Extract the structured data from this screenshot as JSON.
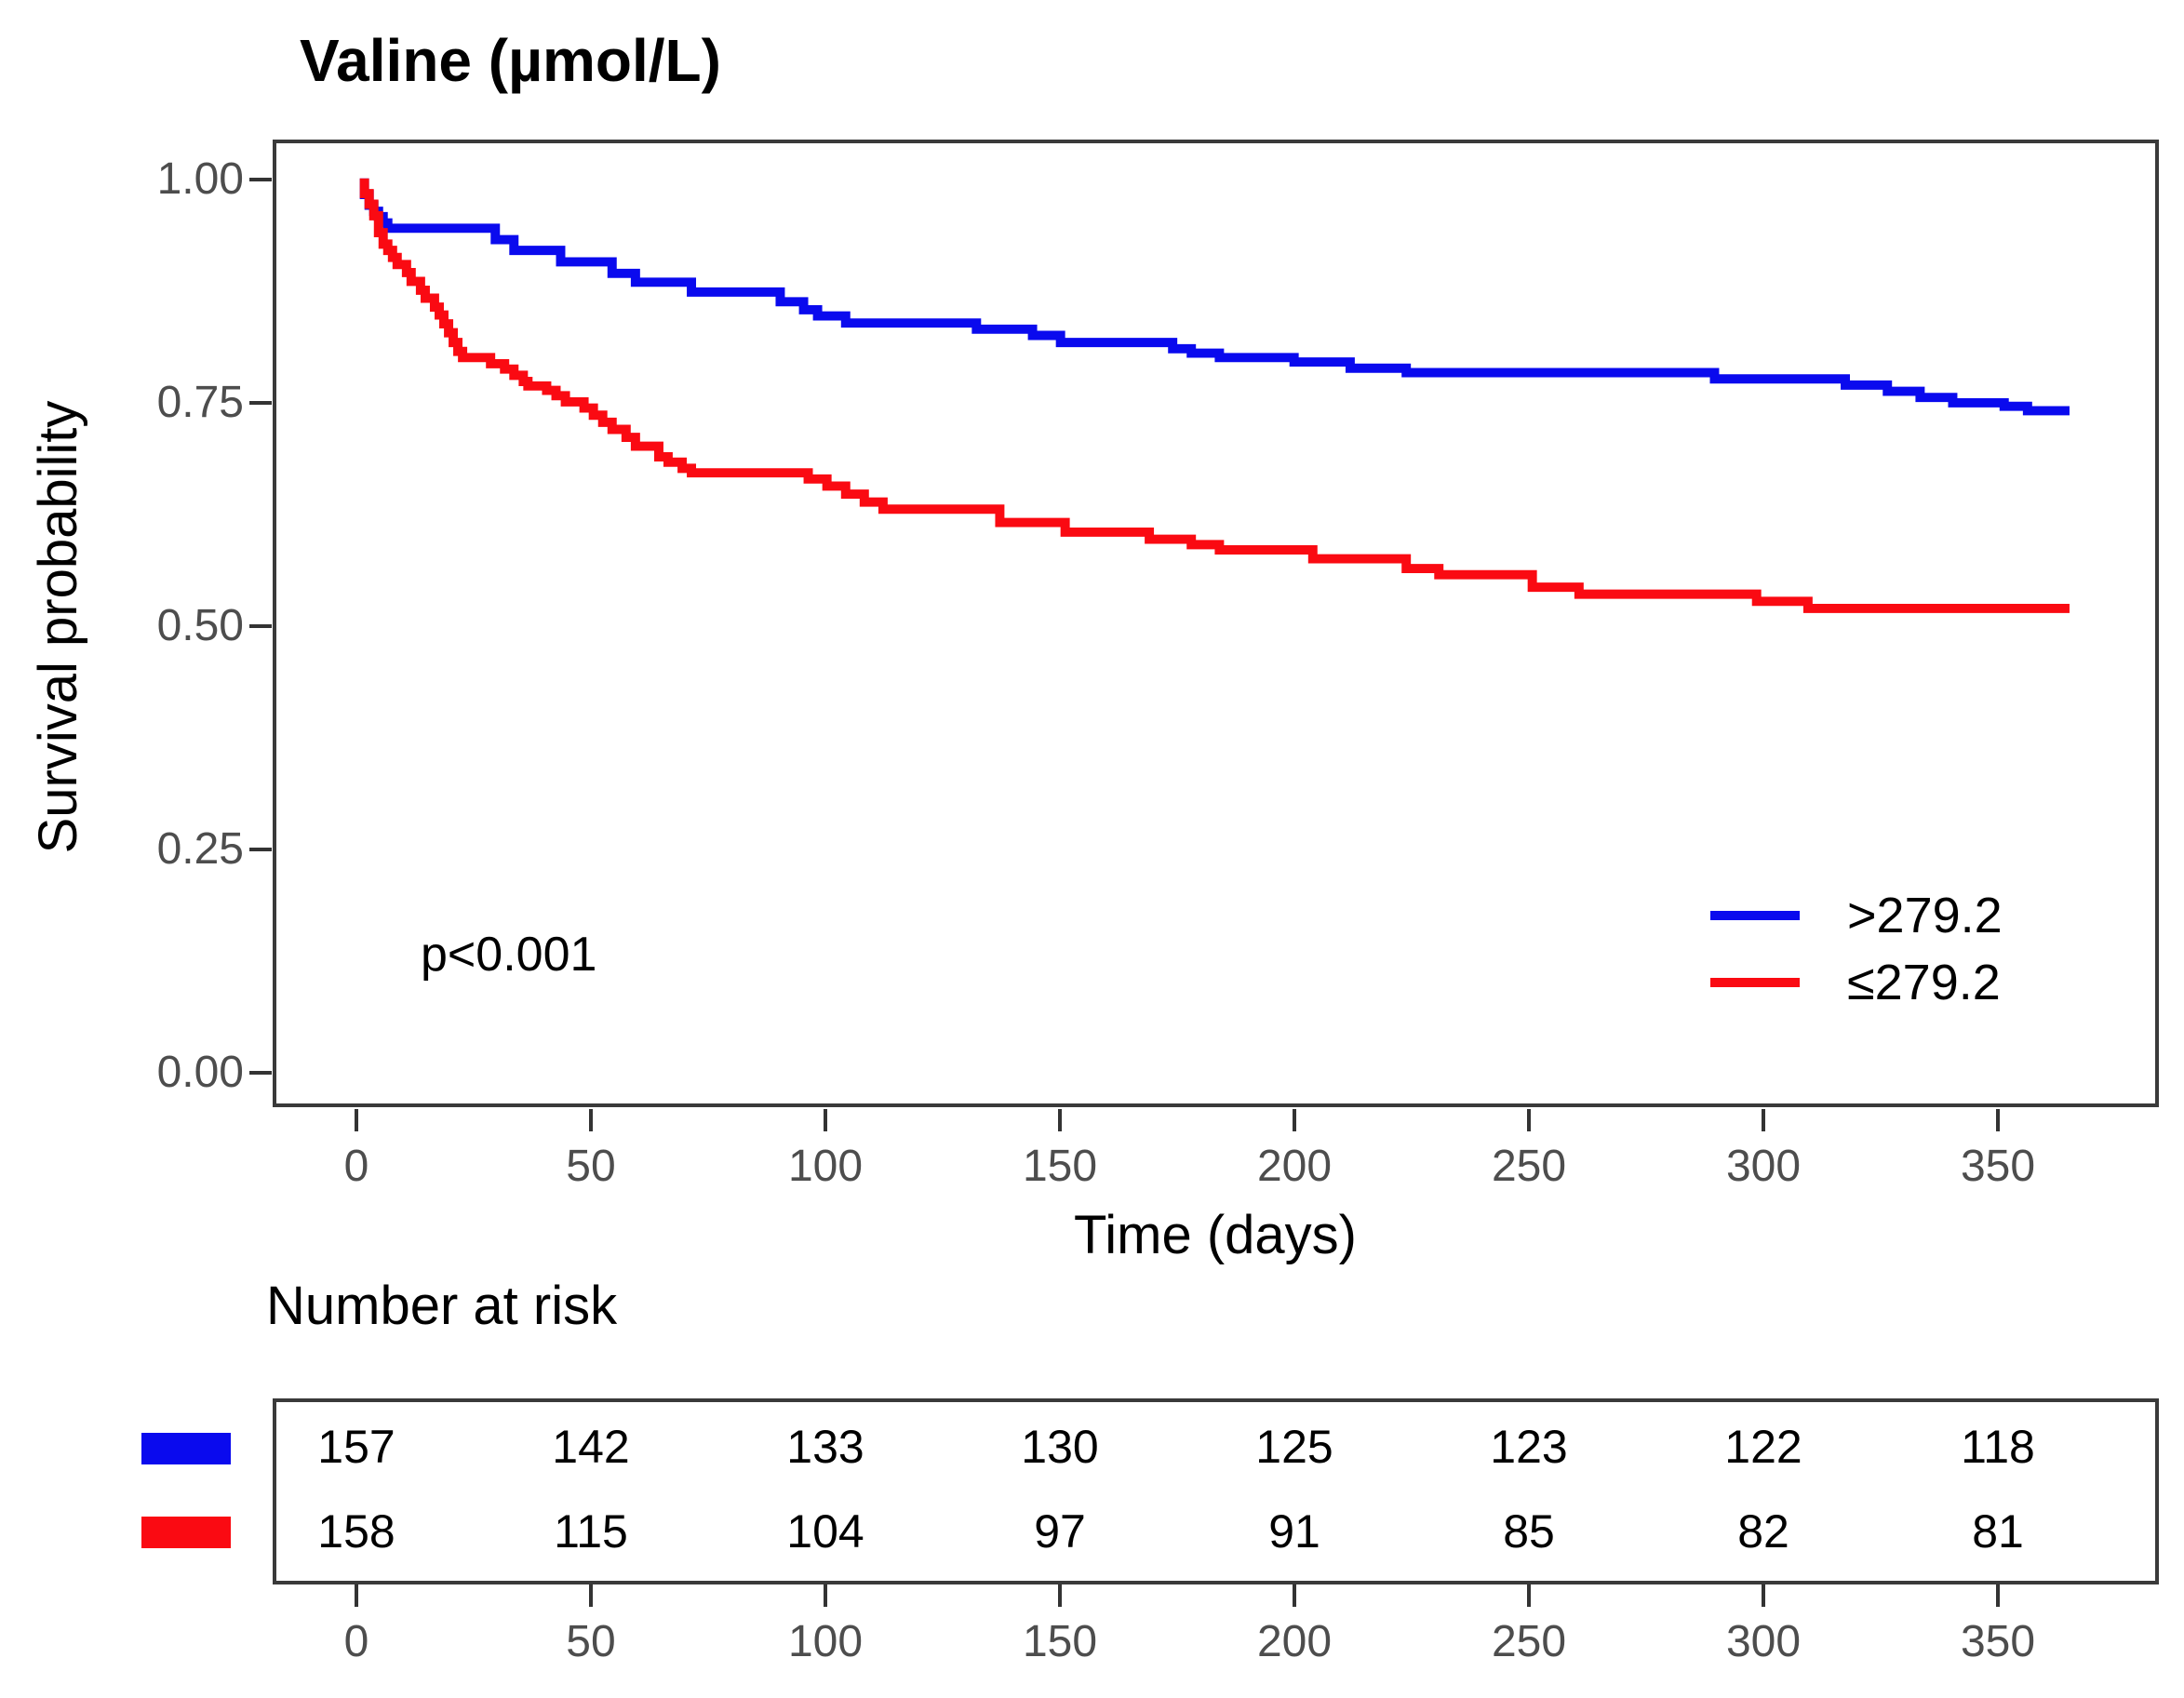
{
  "title": "Valine (µmol/L)",
  "colors": {
    "blue": "#0a0aee",
    "red": "#fa0a12",
    "axis_text": "#4d4d4d",
    "axis_line": "#3a3a3a"
  },
  "chart_data": {
    "type": "line",
    "subtype": "kaplan-meier-step",
    "title": "Valine (µmol/L)",
    "xlabel": "Time (days)",
    "ylabel": "Survival probability",
    "xlim": [
      0,
      366
    ],
    "ylim": [
      0,
      1
    ],
    "xticks": [
      "0",
      "50",
      "100",
      "150",
      "200",
      "250",
      "300",
      "350"
    ],
    "yticks": [
      "1.00",
      "0.75",
      "0.50",
      "0.25",
      "0.00"
    ],
    "grid": false,
    "annotation": "p<0.001",
    "legend_position": "inside-right",
    "legend": [
      {
        "label": ">279.2",
        "color": "#0a0aee"
      },
      {
        "label": "≤279.2",
        "color": "#fa0a12"
      }
    ],
    "series": [
      {
        "name": ">279.2",
        "color": "#0a0aee",
        "points": [
          [
            0,
            1.0
          ],
          [
            1,
            0.987
          ],
          [
            2,
            0.975
          ],
          [
            3,
            0.968
          ],
          [
            4,
            0.962
          ],
          [
            5,
            0.955
          ],
          [
            6,
            0.949
          ],
          [
            29,
            0.936
          ],
          [
            33,
            0.924
          ],
          [
            43,
            0.911
          ],
          [
            54,
            0.898
          ],
          [
            59,
            0.888
          ],
          [
            71,
            0.877
          ],
          [
            90,
            0.866
          ],
          [
            95,
            0.857
          ],
          [
            98,
            0.85
          ],
          [
            104,
            0.842
          ],
          [
            132,
            0.835
          ],
          [
            144,
            0.828
          ],
          [
            150,
            0.82
          ],
          [
            174,
            0.813
          ],
          [
            178,
            0.808
          ],
          [
            184,
            0.803
          ],
          [
            200,
            0.798
          ],
          [
            212,
            0.791
          ],
          [
            224,
            0.786
          ],
          [
            290,
            0.779
          ],
          [
            318,
            0.772
          ],
          [
            327,
            0.765
          ],
          [
            334,
            0.758
          ],
          [
            341,
            0.752
          ],
          [
            352,
            0.748
          ],
          [
            357,
            0.743
          ],
          [
            366,
            0.743
          ]
        ]
      },
      {
        "name": "≤279.2",
        "color": "#fa0a12",
        "points": [
          [
            0,
            1.0
          ],
          [
            1,
            0.988
          ],
          [
            2,
            0.976
          ],
          [
            3,
            0.963
          ],
          [
            4,
            0.944
          ],
          [
            5,
            0.931
          ],
          [
            6,
            0.924
          ],
          [
            7,
            0.916
          ],
          [
            8,
            0.908
          ],
          [
            10,
            0.899
          ],
          [
            11,
            0.889
          ],
          [
            13,
            0.879
          ],
          [
            14,
            0.87
          ],
          [
            16,
            0.86
          ],
          [
            17,
            0.851
          ],
          [
            18,
            0.841
          ],
          [
            19,
            0.831
          ],
          [
            20,
            0.82
          ],
          [
            21,
            0.81
          ],
          [
            22,
            0.803
          ],
          [
            28,
            0.796
          ],
          [
            31,
            0.79
          ],
          [
            33,
            0.783
          ],
          [
            35,
            0.776
          ],
          [
            36,
            0.771
          ],
          [
            40,
            0.766
          ],
          [
            42,
            0.76
          ],
          [
            44,
            0.753
          ],
          [
            48,
            0.746
          ],
          [
            50,
            0.738
          ],
          [
            52,
            0.73
          ],
          [
            54,
            0.722
          ],
          [
            57,
            0.713
          ],
          [
            59,
            0.703
          ],
          [
            64,
            0.691
          ],
          [
            66,
            0.685
          ],
          [
            69,
            0.678
          ],
          [
            71,
            0.673
          ],
          [
            96,
            0.666
          ],
          [
            100,
            0.658
          ],
          [
            104,
            0.649
          ],
          [
            108,
            0.64
          ],
          [
            112,
            0.632
          ],
          [
            137,
            0.617
          ],
          [
            151,
            0.606
          ],
          [
            169,
            0.598
          ],
          [
            178,
            0.592
          ],
          [
            184,
            0.586
          ],
          [
            204,
            0.576
          ],
          [
            224,
            0.565
          ],
          [
            231,
            0.558
          ],
          [
            251,
            0.544
          ],
          [
            261,
            0.536
          ],
          [
            299,
            0.528
          ],
          [
            310,
            0.52
          ],
          [
            366,
            0.52
          ]
        ]
      }
    ]
  },
  "risk_table": {
    "heading": "Number at risk",
    "xticks": [
      "0",
      "50",
      "100",
      "150",
      "200",
      "250",
      "300",
      "350"
    ],
    "rows": [
      {
        "group": ">279.2",
        "color": "#0a0aee",
        "values": [
          "157",
          "142",
          "133",
          "130",
          "125",
          "123",
          "122",
          "118"
        ]
      },
      {
        "group": "≤279.2",
        "color": "#fa0a12",
        "values": [
          "158",
          "115",
          "104",
          "97",
          "91",
          "85",
          "82",
          "81"
        ]
      }
    ]
  }
}
